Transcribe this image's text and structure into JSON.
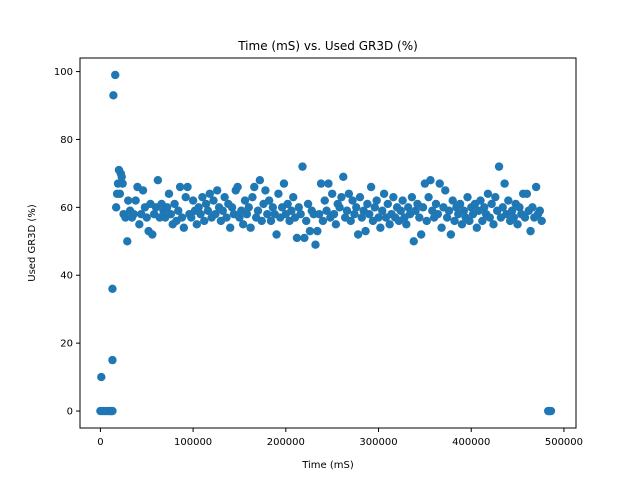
{
  "chart_data": {
    "type": "scatter",
    "title": "Time (mS) vs. Used GR3D (%)",
    "xlabel": "Time (mS)",
    "ylabel": "Used GR3D (%)",
    "xlim": [
      -22000,
      513000
    ],
    "ylim": [
      -5,
      104
    ],
    "xticks": [
      0,
      100000,
      200000,
      300000,
      400000,
      500000
    ],
    "yticks": [
      0,
      20,
      40,
      60,
      80,
      100
    ],
    "grid": false,
    "legend": "none",
    "series": [
      {
        "color": "#1f77b4",
        "points": [
          [
            0,
            0
          ],
          [
            2000,
            0
          ],
          [
            4000,
            0
          ],
          [
            6000,
            0
          ],
          [
            8000,
            0
          ],
          [
            10000,
            0
          ],
          [
            11000,
            0
          ],
          [
            12000,
            0
          ],
          [
            13000,
            0
          ],
          [
            1000,
            10
          ],
          [
            13000,
            15
          ],
          [
            13000,
            36
          ],
          [
            14000,
            93
          ],
          [
            16000,
            99
          ],
          [
            17000,
            60
          ],
          [
            18000,
            64
          ],
          [
            19000,
            67
          ],
          [
            20000,
            71
          ],
          [
            21000,
            64
          ],
          [
            22000,
            70
          ],
          [
            23000,
            69
          ],
          [
            24000,
            67
          ],
          [
            25000,
            58
          ],
          [
            27000,
            57
          ],
          [
            29000,
            50
          ],
          [
            30000,
            62
          ],
          [
            32000,
            59
          ],
          [
            34000,
            57
          ],
          [
            36000,
            58
          ],
          [
            38000,
            62
          ],
          [
            40000,
            66
          ],
          [
            42000,
            55
          ],
          [
            44000,
            58
          ],
          [
            46000,
            65
          ],
          [
            48000,
            60
          ],
          [
            50000,
            57
          ],
          [
            52000,
            53
          ],
          [
            54000,
            61
          ],
          [
            56000,
            52
          ],
          [
            58000,
            58
          ],
          [
            60000,
            60
          ],
          [
            62000,
            68
          ],
          [
            64000,
            57
          ],
          [
            66000,
            61
          ],
          [
            68000,
            59
          ],
          [
            70000,
            57
          ],
          [
            72000,
            60
          ],
          [
            74000,
            64
          ],
          [
            76000,
            58
          ],
          [
            78000,
            55
          ],
          [
            80000,
            61
          ],
          [
            82000,
            56
          ],
          [
            84000,
            59
          ],
          [
            86000,
            66
          ],
          [
            88000,
            57
          ],
          [
            90000,
            54
          ],
          [
            92000,
            63
          ],
          [
            94000,
            66
          ],
          [
            96000,
            58
          ],
          [
            98000,
            57
          ],
          [
            100000,
            62
          ],
          [
            102000,
            59
          ],
          [
            104000,
            55
          ],
          [
            106000,
            60
          ],
          [
            108000,
            58
          ],
          [
            110000,
            63
          ],
          [
            112000,
            56
          ],
          [
            114000,
            61
          ],
          [
            116000,
            59
          ],
          [
            118000,
            64
          ],
          [
            120000,
            57
          ],
          [
            122000,
            62
          ],
          [
            124000,
            58
          ],
          [
            126000,
            65
          ],
          [
            128000,
            60
          ],
          [
            130000,
            56
          ],
          [
            132000,
            59
          ],
          [
            134000,
            63
          ],
          [
            136000,
            57
          ],
          [
            138000,
            61
          ],
          [
            140000,
            54
          ],
          [
            142000,
            60
          ],
          [
            144000,
            58
          ],
          [
            146000,
            65
          ],
          [
            148000,
            66
          ],
          [
            150000,
            57
          ],
          [
            152000,
            59
          ],
          [
            154000,
            55
          ],
          [
            156000,
            62
          ],
          [
            158000,
            58
          ],
          [
            160000,
            60
          ],
          [
            162000,
            54
          ],
          [
            164000,
            63
          ],
          [
            166000,
            66
          ],
          [
            168000,
            57
          ],
          [
            170000,
            59
          ],
          [
            172000,
            68
          ],
          [
            174000,
            56
          ],
          [
            176000,
            61
          ],
          [
            178000,
            65
          ],
          [
            180000,
            58
          ],
          [
            182000,
            62
          ],
          [
            184000,
            56
          ],
          [
            186000,
            60
          ],
          [
            188000,
            58
          ],
          [
            190000,
            52
          ],
          [
            192000,
            64
          ],
          [
            194000,
            57
          ],
          [
            196000,
            60
          ],
          [
            198000,
            67
          ],
          [
            200000,
            58
          ],
          [
            202000,
            61
          ],
          [
            204000,
            56
          ],
          [
            206000,
            59
          ],
          [
            208000,
            63
          ],
          [
            210000,
            57
          ],
          [
            212000,
            51
          ],
          [
            214000,
            60
          ],
          [
            216000,
            58
          ],
          [
            218000,
            72
          ],
          [
            220000,
            51
          ],
          [
            222000,
            56
          ],
          [
            224000,
            61
          ],
          [
            226000,
            53
          ],
          [
            228000,
            59
          ],
          [
            230000,
            58
          ],
          [
            232000,
            49
          ],
          [
            234000,
            53
          ],
          [
            236000,
            58
          ],
          [
            238000,
            67
          ],
          [
            240000,
            56
          ],
          [
            242000,
            62
          ],
          [
            244000,
            59
          ],
          [
            246000,
            67
          ],
          [
            248000,
            57
          ],
          [
            250000,
            64
          ],
          [
            252000,
            58
          ],
          [
            254000,
            55
          ],
          [
            256000,
            61
          ],
          [
            258000,
            60
          ],
          [
            260000,
            63
          ],
          [
            262000,
            69
          ],
          [
            264000,
            57
          ],
          [
            266000,
            59
          ],
          [
            268000,
            64
          ],
          [
            270000,
            56
          ],
          [
            272000,
            62
          ],
          [
            274000,
            58
          ],
          [
            276000,
            60
          ],
          [
            278000,
            52
          ],
          [
            280000,
            63
          ],
          [
            282000,
            57
          ],
          [
            284000,
            59
          ],
          [
            286000,
            53
          ],
          [
            288000,
            61
          ],
          [
            290000,
            58
          ],
          [
            292000,
            66
          ],
          [
            294000,
            56
          ],
          [
            296000,
            60
          ],
          [
            298000,
            62
          ],
          [
            300000,
            57
          ],
          [
            302000,
            54
          ],
          [
            304000,
            59
          ],
          [
            306000,
            64
          ],
          [
            308000,
            57
          ],
          [
            310000,
            61
          ],
          [
            312000,
            55
          ],
          [
            314000,
            58
          ],
          [
            316000,
            63
          ],
          [
            318000,
            57
          ],
          [
            320000,
            60
          ],
          [
            322000,
            56
          ],
          [
            324000,
            59
          ],
          [
            326000,
            62
          ],
          [
            328000,
            57
          ],
          [
            330000,
            55
          ],
          [
            332000,
            60
          ],
          [
            334000,
            58
          ],
          [
            336000,
            63
          ],
          [
            338000,
            50
          ],
          [
            340000,
            59
          ],
          [
            342000,
            61
          ],
          [
            344000,
            57
          ],
          [
            346000,
            52
          ],
          [
            348000,
            60
          ],
          [
            350000,
            67
          ],
          [
            352000,
            56
          ],
          [
            354000,
            63
          ],
          [
            356000,
            68
          ],
          [
            358000,
            59
          ],
          [
            360000,
            57
          ],
          [
            362000,
            61
          ],
          [
            364000,
            58
          ],
          [
            366000,
            67
          ],
          [
            368000,
            54
          ],
          [
            370000,
            60
          ],
          [
            372000,
            65
          ],
          [
            374000,
            57
          ],
          [
            376000,
            59
          ],
          [
            378000,
            52
          ],
          [
            380000,
            62
          ],
          [
            382000,
            56
          ],
          [
            384000,
            60
          ],
          [
            386000,
            58
          ],
          [
            388000,
            61
          ],
          [
            390000,
            55
          ],
          [
            392000,
            59
          ],
          [
            394000,
            57
          ],
          [
            396000,
            63
          ],
          [
            398000,
            56
          ],
          [
            400000,
            60
          ],
          [
            402000,
            58
          ],
          [
            404000,
            61
          ],
          [
            406000,
            54
          ],
          [
            408000,
            59
          ],
          [
            410000,
            62
          ],
          [
            412000,
            56
          ],
          [
            414000,
            60
          ],
          [
            416000,
            58
          ],
          [
            418000,
            64
          ],
          [
            420000,
            57
          ],
          [
            422000,
            61
          ],
          [
            424000,
            55
          ],
          [
            426000,
            63
          ],
          [
            428000,
            59
          ],
          [
            430000,
            72
          ],
          [
            432000,
            57
          ],
          [
            434000,
            60
          ],
          [
            436000,
            67
          ],
          [
            438000,
            58
          ],
          [
            440000,
            62
          ],
          [
            442000,
            56
          ],
          [
            444000,
            59
          ],
          [
            446000,
            57
          ],
          [
            448000,
            61
          ],
          [
            450000,
            55
          ],
          [
            452000,
            60
          ],
          [
            454000,
            58
          ],
          [
            456000,
            64
          ],
          [
            458000,
            57
          ],
          [
            460000,
            64
          ],
          [
            462000,
            59
          ],
          [
            464000,
            53
          ],
          [
            466000,
            60
          ],
          [
            468000,
            57
          ],
          [
            470000,
            66
          ],
          [
            472000,
            58
          ],
          [
            474000,
            59
          ],
          [
            476000,
            56
          ],
          [
            483000,
            0
          ],
          [
            484000,
            0
          ],
          [
            485000,
            0
          ],
          [
            486000,
            0
          ]
        ]
      }
    ]
  }
}
